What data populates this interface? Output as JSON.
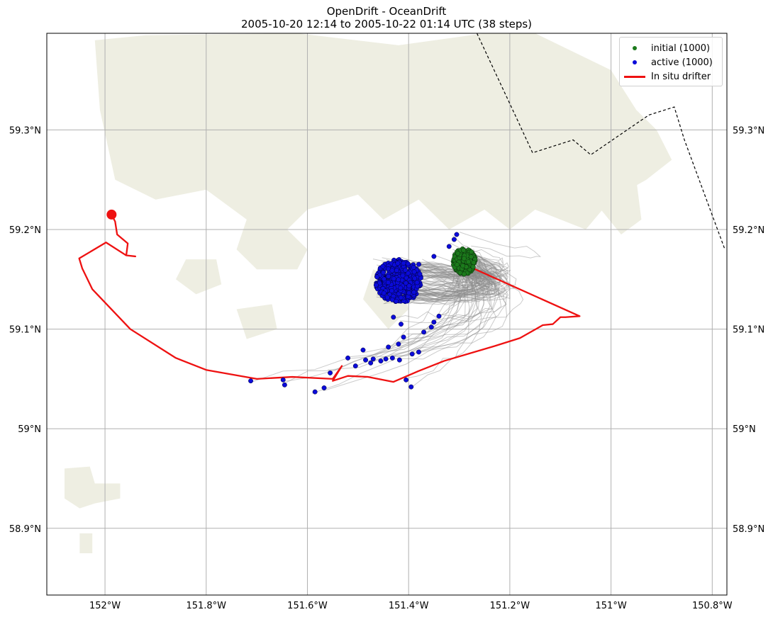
{
  "title": {
    "line1": "OpenDrift - OceanDrift",
    "line2": "2005-10-20 12:14 to 2005-10-22 01:14 UTC (38 steps)"
  },
  "legend": {
    "initial": "initial (1000)",
    "active": "active (1000)",
    "drifter": "In situ drifter"
  },
  "colors": {
    "land": "#eeeee2",
    "initial": "#1c7a1c",
    "active": "#0b0bd9",
    "drifter": "#ee1111",
    "trajectory": "#8c8c8c",
    "grid": "#b0b0b0",
    "border": "#000000"
  },
  "axes": {
    "lon_range": [
      -152.115,
      -150.771
    ],
    "lat_range": [
      58.833,
      59.397
    ],
    "lon_ticks": [
      {
        "value": -152.0,
        "label": "152°W"
      },
      {
        "value": -151.8,
        "label": "151.8°W"
      },
      {
        "value": -151.6,
        "label": "151.6°W"
      },
      {
        "value": -151.4,
        "label": "151.4°W"
      },
      {
        "value": -151.2,
        "label": "151.2°W"
      },
      {
        "value": -151.0,
        "label": "151°W"
      },
      {
        "value": -150.8,
        "label": "150.8°W"
      }
    ],
    "lat_ticks": [
      {
        "value": 58.9,
        "label": "58.9°N"
      },
      {
        "value": 59.0,
        "label": "59°N"
      },
      {
        "value": 59.1,
        "label": "59.1°N"
      },
      {
        "value": 59.2,
        "label": "59.2°N"
      },
      {
        "value": 59.3,
        "label": "59.3°N"
      }
    ],
    "grid": true
  },
  "chart_data": {
    "type": "scatter",
    "title": "OpenDrift - OceanDrift",
    "subtitle": "2005-10-20 12:14 to 2005-10-22 01:14 UTC (38 steps)",
    "xlim": [
      -152.115,
      -150.771
    ],
    "ylim": [
      58.833,
      59.397
    ],
    "legend_position": "top-right",
    "series": [
      {
        "name": "In situ drifter",
        "kind": "line",
        "color": "#ee1111",
        "lon": [
          -151.987,
          -151.98,
          -151.976,
          -151.955,
          -151.958,
          -151.94,
          -151.958,
          -151.998,
          -152.051,
          -152.045,
          -152.025,
          -151.95,
          -151.86,
          -151.8,
          -151.7,
          -151.63,
          -151.55,
          -151.532,
          -151.55,
          -151.52,
          -151.48,
          -151.43,
          -151.38,
          -151.33,
          -151.23,
          -151.18,
          -151.145,
          -151.135,
          -151.115,
          -151.1,
          -151.09,
          -151.062,
          -151.29
        ],
        "lat": [
          59.215,
          59.208,
          59.195,
          59.186,
          59.174,
          59.173,
          59.174,
          59.187,
          59.171,
          59.161,
          59.14,
          59.1,
          59.071,
          59.059,
          59.05,
          59.052,
          59.05,
          59.063,
          59.048,
          59.053,
          59.052,
          59.047,
          59.058,
          59.068,
          59.083,
          59.091,
          59.101,
          59.104,
          59.105,
          59.112,
          59.112,
          59.113,
          59.165
        ]
      },
      {
        "name": "initial (1000)",
        "kind": "points",
        "color": "#1c7a1c",
        "count": 1000,
        "center_lon": -151.29,
        "center_lat": 59.168,
        "radius_lon": 0.022,
        "radius_lat": 0.013
      },
      {
        "name": "active (1000)",
        "kind": "points",
        "color": "#0b0bd9",
        "count": 1000,
        "main_cluster": {
          "center_lon": -151.42,
          "center_lat": 59.148,
          "radius_lon": 0.045,
          "radius_lat": 0.022
        },
        "outliers_lon": [
          -151.712,
          -151.645,
          -151.648,
          -151.585,
          -151.567,
          -151.555,
          -151.505,
          -151.485,
          -151.475,
          -151.455,
          -151.445,
          -151.432,
          -151.418,
          -151.405,
          -151.395,
          -151.393,
          -151.38,
          -151.49,
          -151.52,
          -151.47,
          -151.44,
          -151.42,
          -151.41,
          -151.37,
          -151.355,
          -151.35,
          -151.34,
          -151.43,
          -151.415,
          -151.32,
          -151.31,
          -151.305,
          -151.35,
          -151.38
        ],
        "outliers_lat": [
          59.048,
          59.044,
          59.049,
          59.037,
          59.041,
          59.056,
          59.063,
          59.069,
          59.066,
          59.068,
          59.07,
          59.071,
          59.069,
          59.049,
          59.042,
          59.075,
          59.077,
          59.079,
          59.071,
          59.07,
          59.082,
          59.085,
          59.092,
          59.097,
          59.102,
          59.107,
          59.113,
          59.112,
          59.105,
          59.183,
          59.19,
          59.195,
          59.173,
          59.165
        ]
      },
      {
        "name": "trajectories",
        "kind": "lines",
        "color": "#8c8c8c"
      }
    ],
    "land": {
      "polygons_lonlat": [
        [
          [
            -152.02,
            59.39
          ],
          [
            -151.92,
            59.395
          ],
          [
            -151.62,
            59.397
          ],
          [
            -151.42,
            59.385
          ],
          [
            -151.25,
            59.397
          ],
          [
            -151.15,
            59.397
          ],
          [
            -151.0,
            59.36
          ],
          [
            -150.95,
            59.32
          ],
          [
            -150.91,
            59.3
          ],
          [
            -150.88,
            59.27
          ],
          [
            -150.93,
            59.25
          ],
          [
            -151.0,
            59.23
          ],
          [
            -151.05,
            59.2
          ],
          [
            -151.15,
            59.22
          ],
          [
            -151.2,
            59.2
          ],
          [
            -151.25,
            59.22
          ],
          [
            -151.32,
            59.2
          ],
          [
            -151.38,
            59.23
          ],
          [
            -151.45,
            59.21
          ],
          [
            -151.5,
            59.235
          ],
          [
            -151.6,
            59.22
          ],
          [
            -151.68,
            59.18
          ],
          [
            -151.72,
            59.21
          ],
          [
            -151.8,
            59.24
          ],
          [
            -151.9,
            59.23
          ],
          [
            -151.98,
            59.25
          ],
          [
            -152.01,
            59.32
          ]
        ],
        [
          [
            -151.72,
            59.21
          ],
          [
            -151.65,
            59.205
          ],
          [
            -151.6,
            59.18
          ],
          [
            -151.62,
            59.16
          ],
          [
            -151.7,
            59.16
          ],
          [
            -151.74,
            59.18
          ]
        ],
        [
          [
            -151.84,
            59.17
          ],
          [
            -151.78,
            59.17
          ],
          [
            -151.77,
            59.145
          ],
          [
            -151.82,
            59.135
          ],
          [
            -151.86,
            59.15
          ]
        ],
        [
          [
            -151.74,
            59.12
          ],
          [
            -151.67,
            59.125
          ],
          [
            -151.66,
            59.1
          ],
          [
            -151.72,
            59.09
          ]
        ],
        [
          [
            -151.47,
            59.16
          ],
          [
            -151.42,
            59.15
          ],
          [
            -151.4,
            59.12
          ],
          [
            -151.44,
            59.1
          ],
          [
            -151.49,
            59.13
          ]
        ],
        [
          [
            -151.0,
            59.26
          ],
          [
            -150.95,
            59.25
          ],
          [
            -150.94,
            59.21
          ],
          [
            -150.98,
            59.195
          ],
          [
            -151.02,
            59.22
          ]
        ],
        [
          [
            -152.08,
            58.96
          ],
          [
            -152.03,
            58.962
          ],
          [
            -152.02,
            58.945
          ],
          [
            -151.97,
            58.945
          ],
          [
            -151.97,
            58.93
          ],
          [
            -152.02,
            58.925
          ],
          [
            -152.05,
            58.92
          ],
          [
            -152.08,
            58.93
          ]
        ],
        [
          [
            -152.05,
            58.895
          ],
          [
            -152.025,
            58.895
          ],
          [
            -152.025,
            58.875
          ],
          [
            -152.05,
            58.875
          ]
        ]
      ]
    },
    "boundary": {
      "style": "dashed",
      "lon": [
        -151.265,
        -151.185,
        -151.155,
        -151.075,
        -151.04,
        -150.925,
        -150.875,
        -150.855,
        -150.775
      ],
      "lat": [
        59.397,
        59.31,
        59.277,
        59.29,
        59.275,
        59.315,
        59.323,
        59.29,
        59.18
      ]
    }
  }
}
